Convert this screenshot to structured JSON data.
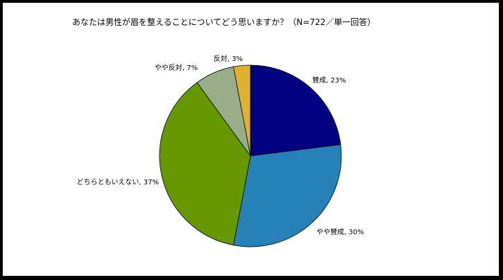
{
  "chart_data": {
    "type": "pie",
    "title": "あなたは男性が眉を整えることについてどう思いますか？（N=722／単一回答）",
    "slices": [
      {
        "name": "賛成",
        "value": 23,
        "label": "賛成, 23%",
        "color": "#000080"
      },
      {
        "name": "やや賛成",
        "value": 30,
        "label": "やや賛成, 30%",
        "color": "#2681b8"
      },
      {
        "name": "どちらともいえない",
        "value": 37,
        "label": "どちらともいえない, 37%",
        "color": "#669900"
      },
      {
        "name": "やや反対",
        "value": 7,
        "label": "やや反対, 7%",
        "color": "#99ae88"
      },
      {
        "name": "反対",
        "value": 3,
        "label": "反対, 3%",
        "color": "#e0b030"
      }
    ],
    "start_angle": "12 o'clock",
    "direction": "clockwise",
    "legend": "none"
  }
}
